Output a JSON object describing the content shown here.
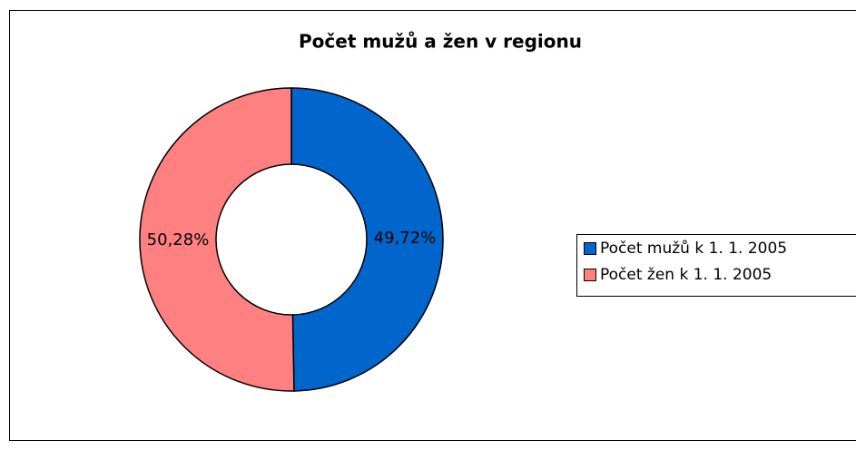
{
  "chart_data": {
    "type": "donut",
    "title": "Počet mužů a žen v regionu",
    "categories": [
      "Počet mužů k 1. 1. 2005",
      "Počet žen k 1. 1. 2005"
    ],
    "values": [
      49.72,
      50.28
    ],
    "value_labels": [
      "49,72%",
      "50,28%"
    ],
    "colors": [
      "#0066cc",
      "#ff8080"
    ],
    "legend": "right"
  }
}
